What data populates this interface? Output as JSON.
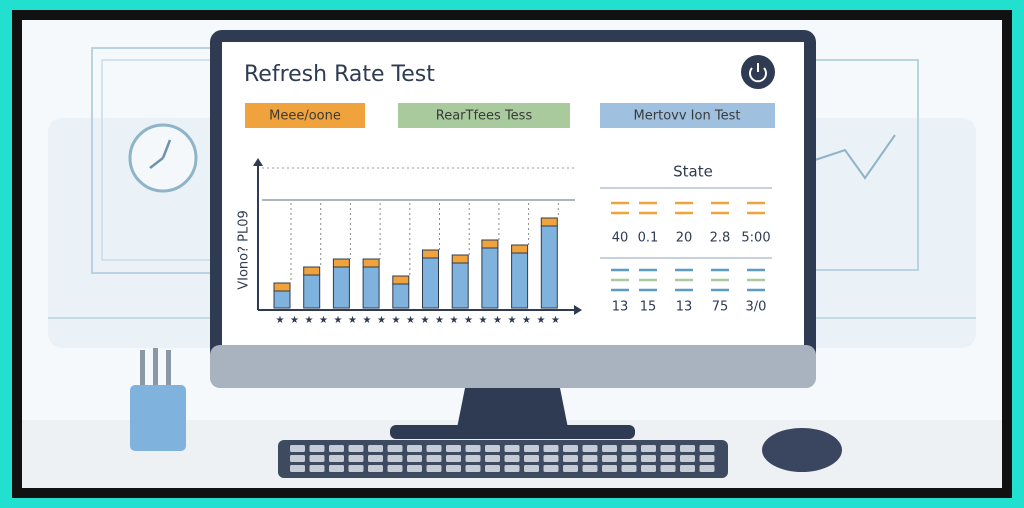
{
  "screen": {
    "title": "Refresh Rate Test",
    "tabs": [
      "Meee/oone",
      "RearTfees Tess",
      "Mertovv Ion Test"
    ],
    "chart_axis_label": "VIono? PL09",
    "stats": {
      "title": "State",
      "rows": [
        [
          "40",
          "0.1",
          "20",
          "2.8",
          "5:00"
        ],
        [
          "13",
          "15",
          "13",
          "75",
          "3/0"
        ]
      ]
    }
  }
}
